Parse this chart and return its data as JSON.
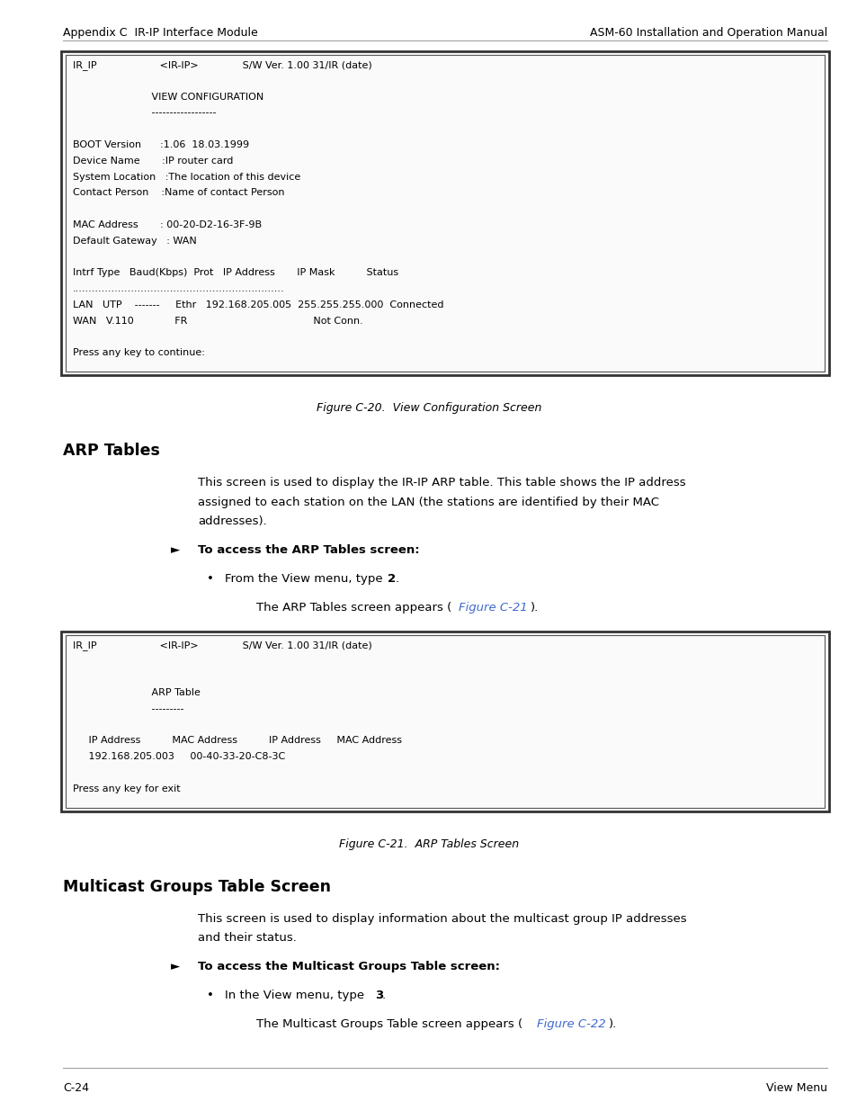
{
  "page_width": 9.54,
  "page_height": 12.35,
  "bg_color": "#ffffff",
  "header_left": "Appendix C  IR-IP Interface Module",
  "header_right": "ASM-60 Installation and Operation Manual",
  "footer_left": "C-24",
  "footer_right": "View Menu",
  "box1_lines": [
    "IR_IP                    <IR-IP>              S/W Ver. 1.00 31/IR (date)",
    "",
    "                         VIEW CONFIGURATION",
    "                         ------------------",
    "",
    "BOOT Version      :1.06  18.03.1999",
    "Device Name       :IP router card",
    "System Location   :The location of this device",
    "Contact Person    :Name of contact Person",
    "",
    "MAC Address       : 00-20-D2-16-3F-9B",
    "Default Gateway   : WAN",
    "",
    "Intrf Type   Baud(Kbps)  Prot   IP Address       IP Mask          Status",
    ".................................................................",
    "LAN   UTP    -------     Ethr   192.168.205.005  255.255.255.000  Connected",
    "WAN   V.110             FR                                        Not Conn.",
    "",
    "Press any key to continue:"
  ],
  "fig_caption1": "Figure C-20.  View Configuration Screen",
  "section1_title": "ARP Tables",
  "section1_para1": "This screen is used to display the IR-IP ARP table. This table shows the IP address",
  "section1_para2": "assigned to each station on the LAN (the stations are identified by their MAC",
  "section1_para3": "addresses).",
  "section1_arrow_text": "To access the ARP Tables screen:",
  "section1_bullet_pre": "From the View menu, type ",
  "section1_bullet_bold": "2",
  "section1_bullet_post": ".",
  "section1_ref_pre": "The ARP Tables screen appears (",
  "section1_ref_link": "Figure C-21",
  "section1_ref_post": ").",
  "box2_lines": [
    "IR_IP                    <IR-IP>              S/W Ver. 1.00 31/IR (date)",
    "",
    "",
    "                         ARP Table",
    "                         ---------",
    "",
    "     IP Address          MAC Address          IP Address     MAC Address",
    "     192.168.205.003     00-40-33-20-C8-3C",
    "",
    "Press any key for exit"
  ],
  "fig_caption2": "Figure C-21.  ARP Tables Screen",
  "section2_title": "Multicast Groups Table Screen",
  "section2_para1": "This screen is used to display information about the multicast group IP addresses",
  "section2_para2": "and their status.",
  "section2_arrow_text": "To access the Multicast Groups Table screen:",
  "section2_bullet_pre": "In the View menu, type ",
  "section2_bullet_bold": "3",
  "section2_bullet_post": ".",
  "section2_ref_pre": "The Multicast Groups Table screen appears (",
  "section2_ref_link": "Figure C-22",
  "section2_ref_post": ").",
  "link_color": "#4169cc",
  "box_border": "#000000",
  "text_color": "#000000",
  "mono_fontsize": 8.0,
  "body_fontsize": 9.5,
  "header_fontsize": 9.0,
  "caption_fontsize": 9.0,
  "section_fontsize": 12.5,
  "arrow_fontsize": 9.5,
  "bullet_fontsize": 9.5
}
